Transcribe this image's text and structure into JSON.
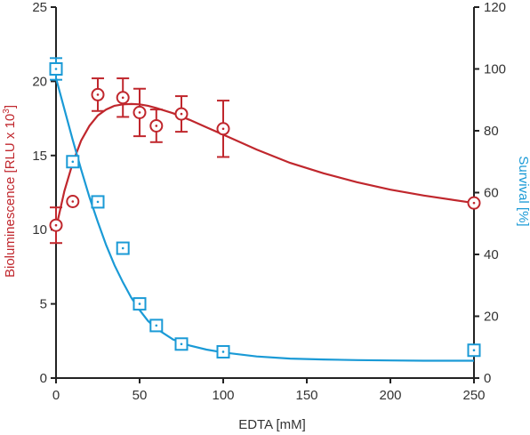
{
  "chart_data": {
    "type": "scatter",
    "title": "",
    "xlabel": "EDTA [mM]",
    "ylabel_left": "Bioluminescence [RLU x 10",
    "ylabel_left_sup": "3",
    "ylabel_left_end": "]",
    "ylabel_right": "Survival [%]",
    "xlim": [
      0,
      250
    ],
    "ylim_left": [
      0,
      25
    ],
    "ylim_right": [
      0,
      120
    ],
    "x_ticks": [
      0,
      50,
      100,
      150,
      200,
      250
    ],
    "y_left_ticks": [
      0,
      5,
      10,
      15,
      20,
      25
    ],
    "y_right_ticks": [
      0,
      20,
      40,
      60,
      80,
      100,
      120
    ],
    "grid": false,
    "colors": {
      "bioluminescence": "#c0272d",
      "survival": "#1a9ad6",
      "axis": "#222222"
    },
    "series": [
      {
        "axis": "left",
        "marker": "circle",
        "x": [
          0,
          10,
          25,
          40,
          50,
          60,
          75,
          100,
          250
        ],
        "y": [
          10.3,
          11.9,
          19.1,
          18.9,
          17.9,
          17.0,
          17.8,
          16.8,
          11.8
        ],
        "err": [
          1.2,
          0,
          1.1,
          1.3,
          1.6,
          1.1,
          1.2,
          1.9,
          0
        ],
        "fit_x": [
          0,
          5,
          10,
          15,
          20,
          25,
          30,
          35,
          40,
          45,
          50,
          55,
          60,
          70,
          80,
          90,
          100,
          120,
          140,
          160,
          180,
          200,
          220,
          250
        ],
        "fit_y": [
          10.1,
          12.6,
          14.5,
          16.0,
          17.0,
          17.7,
          18.1,
          18.35,
          18.45,
          18.47,
          18.45,
          18.35,
          18.2,
          17.85,
          17.4,
          16.9,
          16.4,
          15.4,
          14.5,
          13.8,
          13.2,
          12.7,
          12.3,
          11.8
        ]
      },
      {
        "axis": "right",
        "marker": "square",
        "x": [
          0,
          10,
          25,
          40,
          50,
          60,
          75,
          100,
          250
        ],
        "y": [
          100,
          70,
          57,
          42,
          24,
          17,
          11,
          8.5,
          9
        ],
        "err": [
          3.5,
          0,
          0,
          0,
          0,
          0,
          0,
          0,
          0
        ],
        "fit_x": [
          0,
          5,
          10,
          15,
          20,
          25,
          30,
          35,
          40,
          45,
          50,
          55,
          60,
          70,
          80,
          90,
          100,
          120,
          140,
          160,
          180,
          200,
          220,
          250
        ],
        "fit_y": [
          97,
          87,
          77,
          67.5,
          58.5,
          50.5,
          43,
          36.5,
          31,
          26,
          22,
          18.5,
          16,
          12.5,
          10.5,
          9.2,
          8.3,
          7.0,
          6.3,
          6.0,
          5.8,
          5.7,
          5.6,
          5.6
        ]
      }
    ]
  }
}
